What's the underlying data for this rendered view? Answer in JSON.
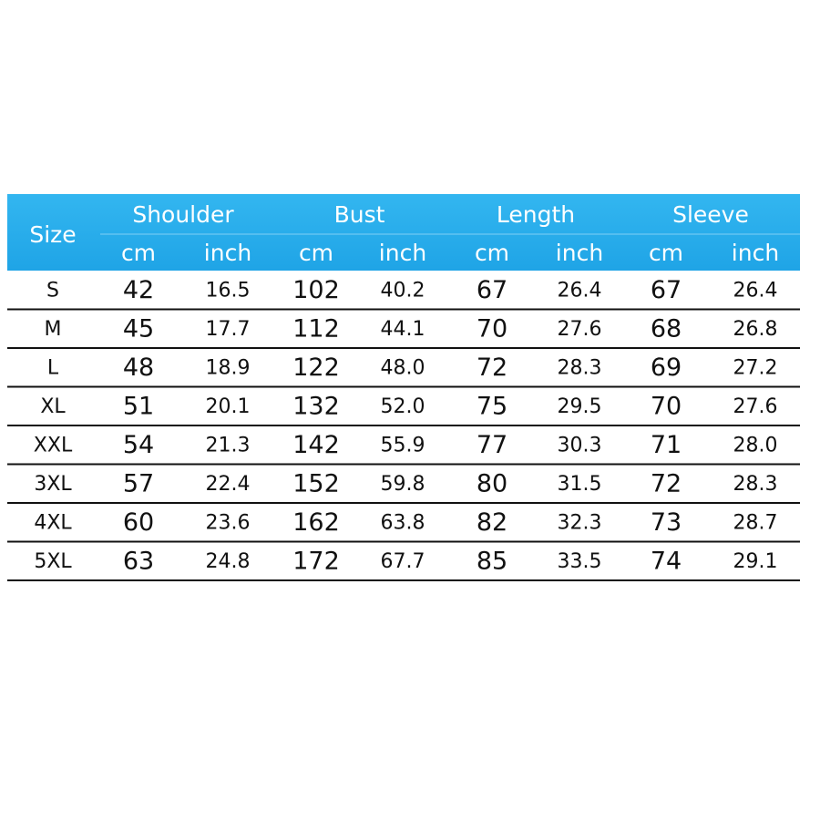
{
  "table": {
    "size_label": "Size",
    "groups": [
      {
        "name": "Shoulder",
        "units": [
          "cm",
          "inch"
        ]
      },
      {
        "name": "Bust",
        "units": [
          "cm",
          "inch"
        ]
      },
      {
        "name": "Length",
        "units": [
          "cm",
          "inch"
        ]
      },
      {
        "name": "Sleeve",
        "units": [
          "cm",
          "inch"
        ]
      }
    ],
    "rows": [
      [
        "S",
        "42",
        "16.5",
        "102",
        "40.2",
        "67",
        "26.4",
        "67",
        "26.4"
      ],
      [
        "M",
        "45",
        "17.7",
        "112",
        "44.1",
        "70",
        "27.6",
        "68",
        "26.8"
      ],
      [
        "L",
        "48",
        "18.9",
        "122",
        "48.0",
        "72",
        "28.3",
        "69",
        "27.2"
      ],
      [
        "XL",
        "51",
        "20.1",
        "132",
        "52.0",
        "75",
        "29.5",
        "70",
        "27.6"
      ],
      [
        "XXL",
        "54",
        "21.3",
        "142",
        "55.9",
        "77",
        "30.3",
        "71",
        "28.0"
      ],
      [
        "3XL",
        "57",
        "22.4",
        "152",
        "59.8",
        "80",
        "31.5",
        "72",
        "28.3"
      ],
      [
        "4XL",
        "60",
        "23.6",
        "162",
        "63.8",
        "82",
        "32.3",
        "73",
        "28.7"
      ],
      [
        "5XL",
        "63",
        "24.8",
        "172",
        "67.7",
        "85",
        "33.5",
        "74",
        "29.1"
      ]
    ]
  }
}
